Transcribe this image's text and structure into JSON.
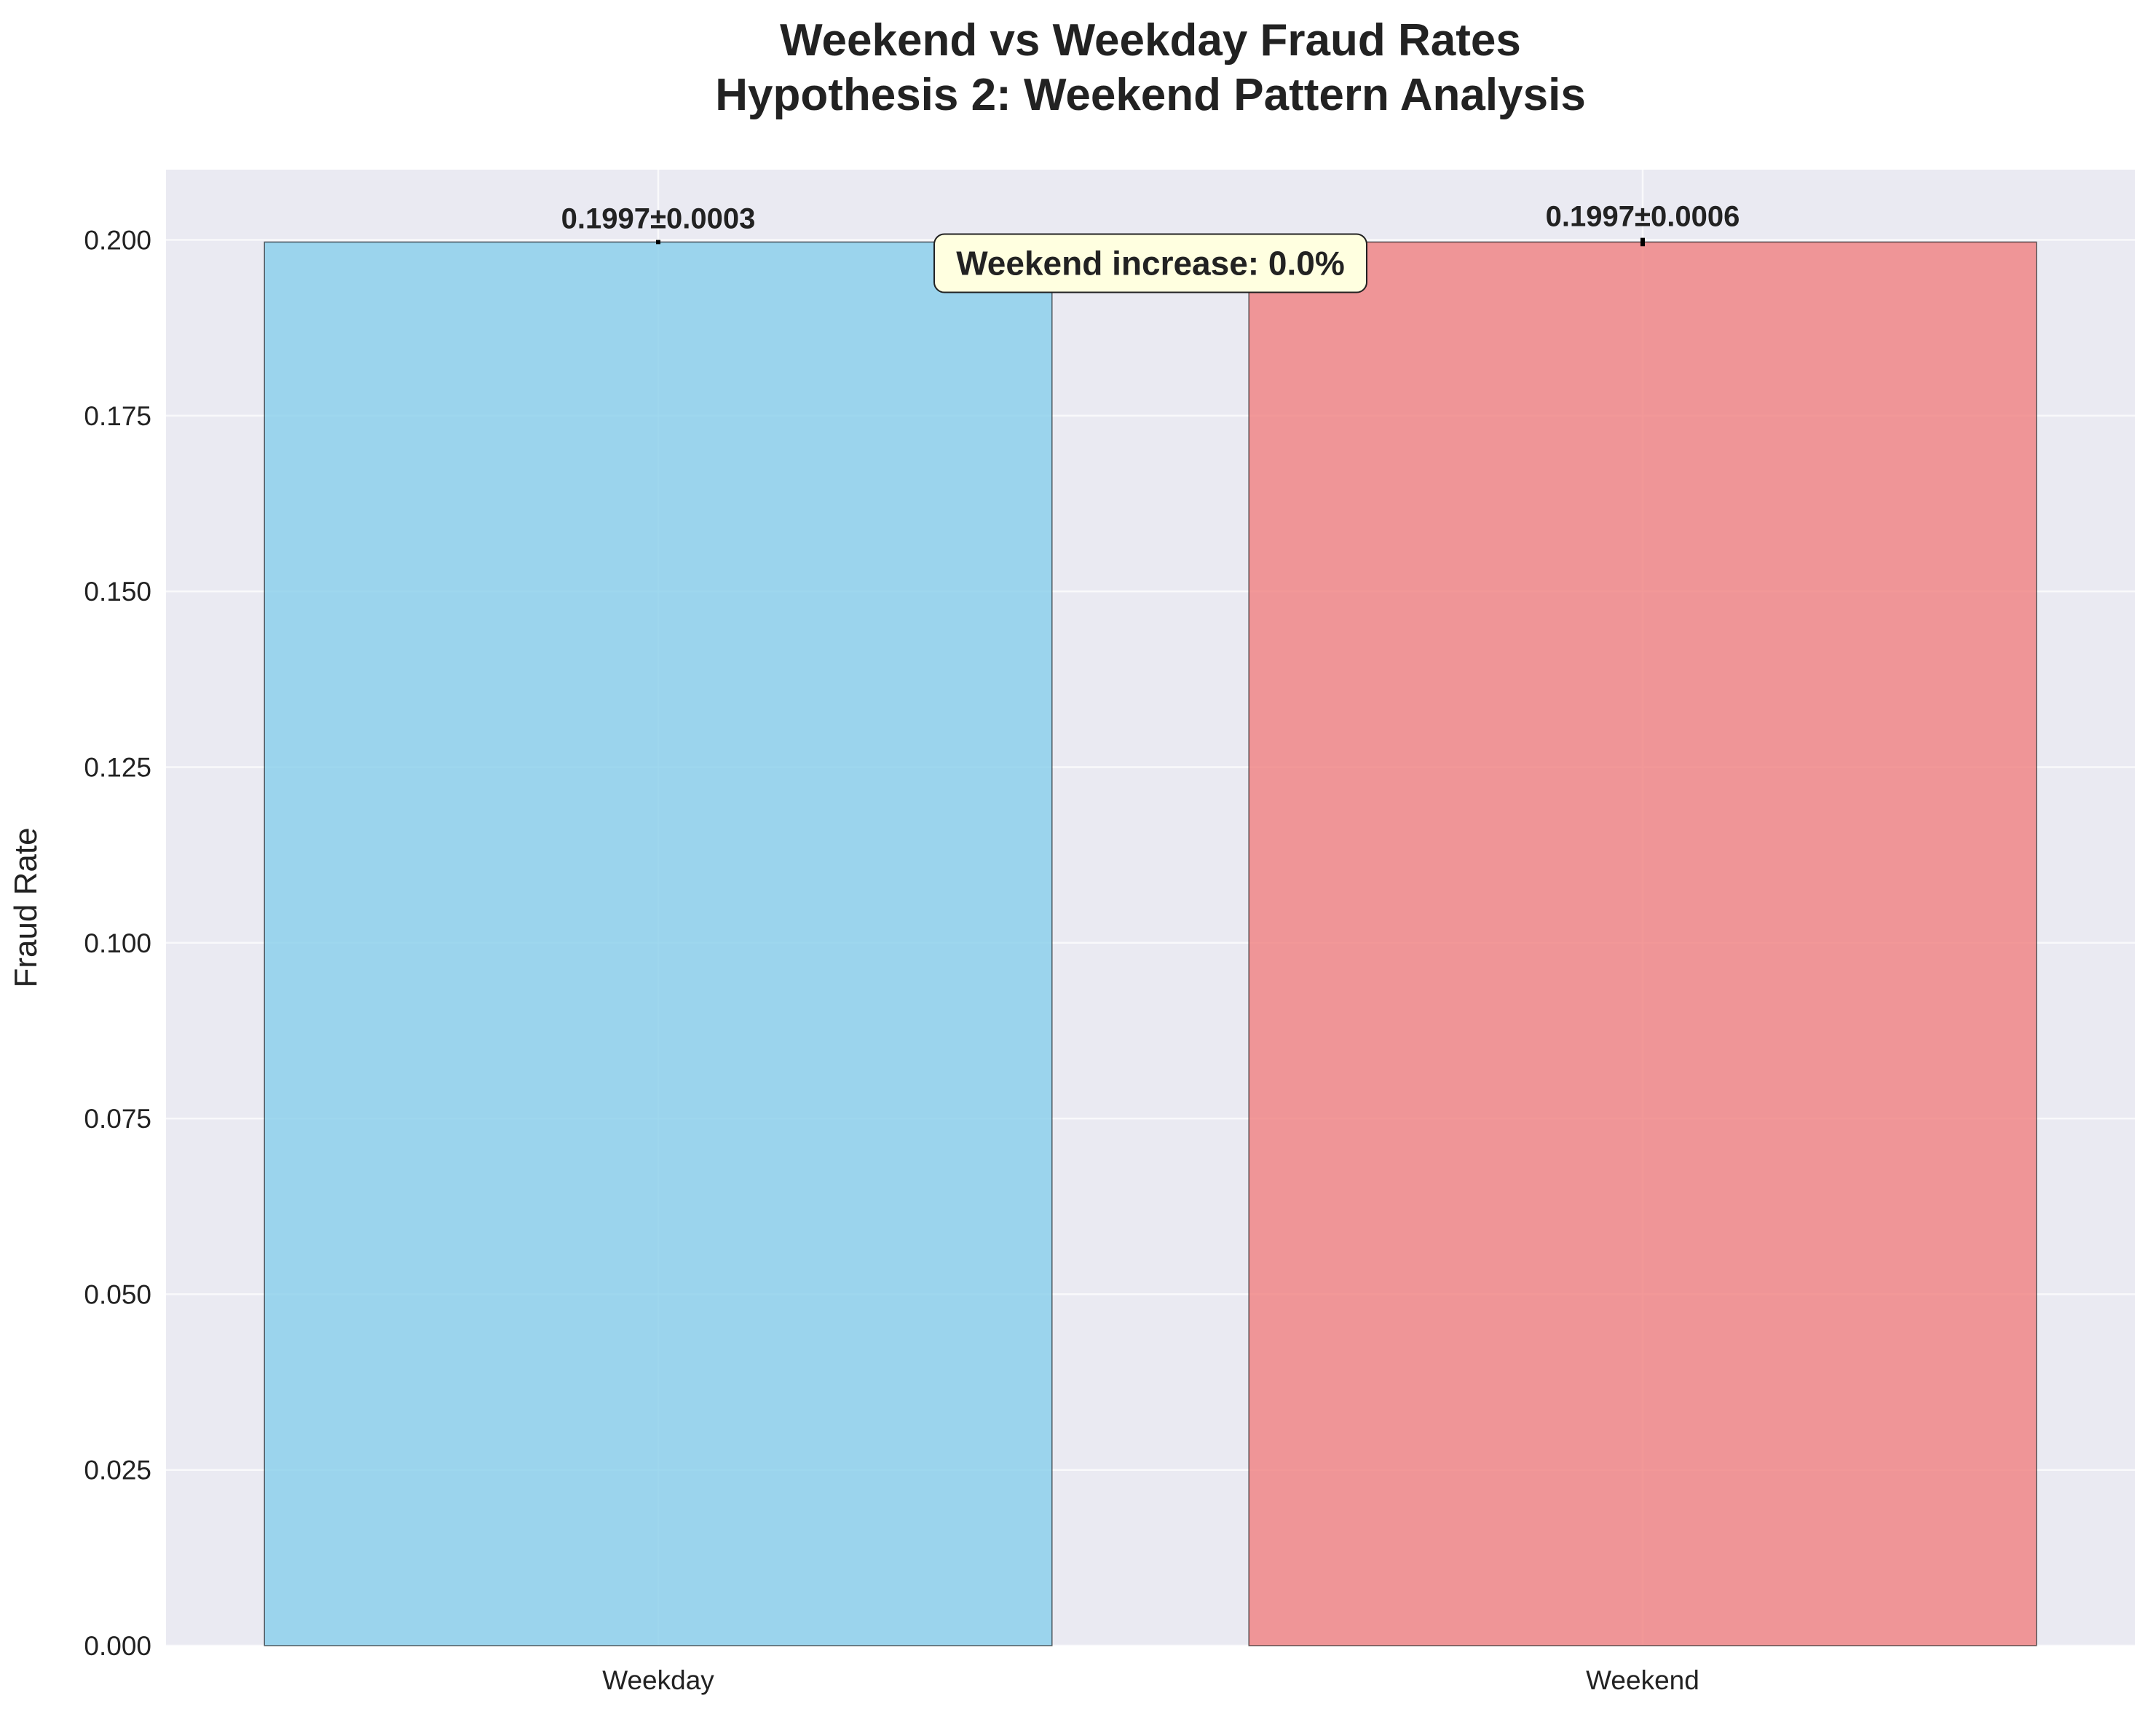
{
  "chart_data": {
    "type": "bar",
    "title": [
      "Weekend vs Weekday Fraud Rates",
      "Hypothesis 2: Weekend Pattern Analysis"
    ],
    "xlabel": "",
    "ylabel": "Fraud Rate",
    "categories": [
      "Weekday",
      "Weekend"
    ],
    "values": [
      0.1997,
      0.1997
    ],
    "errors": [
      0.0003,
      0.0006
    ],
    "data_labels": [
      "0.1997±0.0003",
      "0.1997±0.0006"
    ],
    "bar_colors": [
      "#87CEEB",
      "#F08080"
    ],
    "ylim": [
      0,
      0.21
    ],
    "yticks": [
      0.0,
      0.025,
      0.05,
      0.075,
      0.1,
      0.125,
      0.15,
      0.175,
      0.2
    ],
    "ytick_labels": [
      "0.000",
      "0.025",
      "0.050",
      "0.075",
      "0.100",
      "0.125",
      "0.150",
      "0.175",
      "0.200"
    ],
    "grid": true,
    "annotation": "Weekend increase: 0.0%",
    "annotation_color": "#FFFFE0",
    "background_color": "#EAEAF2"
  }
}
